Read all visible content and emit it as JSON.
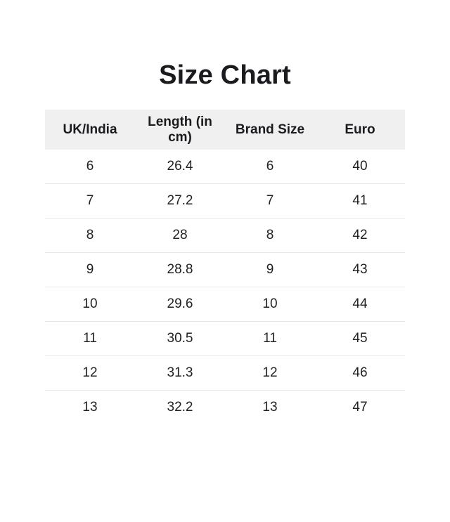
{
  "title": "Size Chart",
  "colors": {
    "page_background": "#ffffff",
    "header_background": "#f0f0f0",
    "row_divider": "#e8e8e8",
    "text": "#1b1b1f"
  },
  "table": {
    "columns": [
      "UK/India",
      "Length (in cm)",
      "Brand Size",
      "Euro"
    ],
    "rows": [
      [
        "6",
        "26.4",
        "6",
        "40"
      ],
      [
        "7",
        "27.2",
        "7",
        "41"
      ],
      [
        "8",
        "28",
        "8",
        "42"
      ],
      [
        "9",
        "28.8",
        "9",
        "43"
      ],
      [
        "10",
        "29.6",
        "10",
        "44"
      ],
      [
        "11",
        "30.5",
        "11",
        "45"
      ],
      [
        "12",
        "31.3",
        "12",
        "46"
      ],
      [
        "13",
        "32.2",
        "13",
        "47"
      ]
    ]
  },
  "chart_data": {
    "type": "table",
    "title": "Size Chart",
    "columns": [
      "UK/India",
      "Length (in cm)",
      "Brand Size",
      "Euro"
    ],
    "rows": [
      {
        "uk_india": 6,
        "length_cm": 26.4,
        "brand_size": 6,
        "euro": 40
      },
      {
        "uk_india": 7,
        "length_cm": 27.2,
        "brand_size": 7,
        "euro": 41
      },
      {
        "uk_india": 8,
        "length_cm": 28,
        "brand_size": 8,
        "euro": 42
      },
      {
        "uk_india": 9,
        "length_cm": 28.8,
        "brand_size": 9,
        "euro": 43
      },
      {
        "uk_india": 10,
        "length_cm": 29.6,
        "brand_size": 10,
        "euro": 44
      },
      {
        "uk_india": 11,
        "length_cm": 30.5,
        "brand_size": 11,
        "euro": 45
      },
      {
        "uk_india": 12,
        "length_cm": 31.3,
        "brand_size": 12,
        "euro": 46
      },
      {
        "uk_india": 13,
        "length_cm": 32.2,
        "brand_size": 13,
        "euro": 47
      }
    ],
    "layout": {
      "header_band": true,
      "row_dividers": true,
      "outer_border": false,
      "alignment": "center"
    }
  }
}
